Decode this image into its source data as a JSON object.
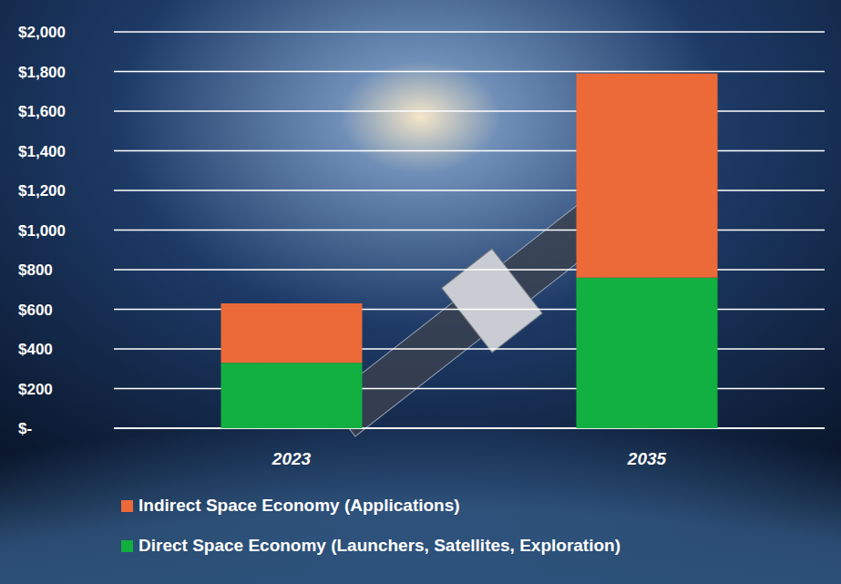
{
  "chart_data": {
    "type": "bar",
    "stacked": true,
    "grid": true,
    "legend": "bottom",
    "categories": [
      "2023",
      "2035"
    ],
    "series": [
      {
        "name": "Direct Space Economy (Launchers, Satellites, Exploration)",
        "color": "#12b040",
        "values": [
          330,
          760
        ]
      },
      {
        "name": "Indirect Space Economy (Applications)",
        "color": "#ec6a38",
        "values": [
          300,
          1030
        ]
      }
    ],
    "ylim": [
      0,
      2000
    ],
    "yticks": [
      {
        "value": 0,
        "label": "$-"
      },
      {
        "value": 200,
        "label": "$200"
      },
      {
        "value": 400,
        "label": "$400"
      },
      {
        "value": 600,
        "label": "$600"
      },
      {
        "value": 800,
        "label": "$800"
      },
      {
        "value": 1000,
        "label": "$1,000"
      },
      {
        "value": 1200,
        "label": "$1,200"
      },
      {
        "value": 1400,
        "label": "$1,400"
      },
      {
        "value": 1600,
        "label": "$1,600"
      },
      {
        "value": 1800,
        "label": "$1,800"
      },
      {
        "value": 2000,
        "label": "$2,000"
      }
    ]
  }
}
